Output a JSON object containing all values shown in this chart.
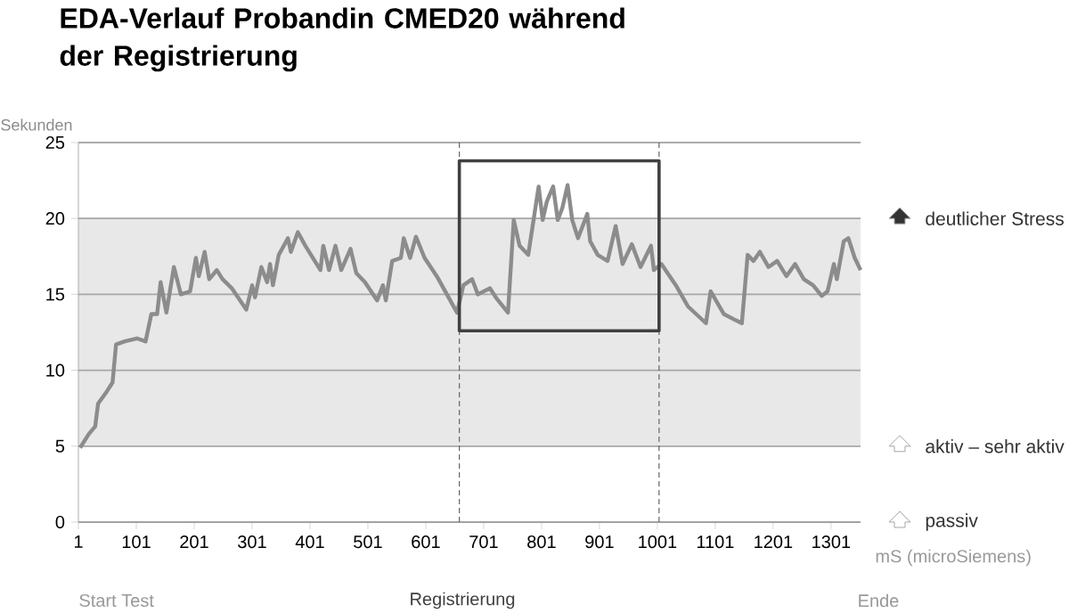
{
  "chart_data": {
    "type": "line",
    "title": "EDA-Verlauf Probandin CMED20 während der Registrierung",
    "xlabel": "mS (microSiemens)",
    "ylabel": "Sekunden",
    "xlim": [
      1,
      1352
    ],
    "ylim": [
      0,
      25
    ],
    "xticks": [
      1,
      101,
      201,
      301,
      401,
      501,
      601,
      701,
      801,
      901,
      1001,
      1101,
      1201,
      1301
    ],
    "yticks": [
      0,
      5,
      10,
      15,
      20,
      25
    ],
    "grid": "y",
    "series": [
      {
        "color": "#8c8c8c",
        "x": [
          4,
          19,
          30,
          35,
          50,
          60,
          66,
          81,
          102,
          117,
          127,
          137,
          143,
          153,
          166,
          178,
          194,
          204,
          209,
          219,
          227,
          240,
          250,
          266,
          291,
          301,
          306,
          317,
          327,
          332,
          337,
          347,
          363,
          368,
          380,
          393,
          419,
          424,
          434,
          445,
          455,
          471,
          481,
          496,
          517,
          527,
          532,
          543,
          558,
          563,
          574,
          584,
          599,
          620,
          655,
          666,
          681,
          691,
          712,
          722,
          743,
          753,
          763,
          778,
          788,
          796,
          803,
          810,
          821,
          829,
          837,
          846,
          854,
          864,
          880,
          885,
          898,
          915,
          929,
          941,
          957,
          972,
          990,
          995,
          1008,
          1033,
          1054,
          1085,
          1093,
          1116,
          1136,
          1147,
          1157,
          1167,
          1178,
          1193,
          1208,
          1224,
          1239,
          1254,
          1270,
          1285,
          1295,
          1306,
          1311,
          1323,
          1331,
          1342,
          1352
        ],
        "values": [
          4.9,
          5.8,
          6.3,
          7.8,
          8.6,
          9.2,
          11.7,
          11.9,
          12.1,
          11.9,
          13.7,
          13.7,
          15.8,
          13.8,
          16.8,
          15.0,
          15.2,
          17.4,
          16.2,
          17.8,
          16.0,
          16.6,
          16.0,
          15.4,
          14.0,
          15.6,
          14.8,
          16.8,
          15.8,
          17.0,
          15.6,
          17.6,
          18.7,
          17.8,
          19.1,
          18.2,
          16.6,
          18.2,
          16.6,
          18.2,
          16.6,
          18.0,
          16.4,
          15.8,
          14.6,
          15.6,
          14.6,
          17.2,
          17.4,
          18.7,
          17.4,
          18.8,
          17.4,
          16.2,
          13.8,
          15.6,
          16.0,
          15.0,
          15.4,
          14.8,
          13.8,
          19.9,
          18.2,
          17.6,
          20.1,
          22.1,
          19.9,
          21.1,
          22.1,
          19.9,
          20.7,
          22.2,
          19.9,
          18.7,
          20.3,
          18.5,
          17.6,
          17.2,
          19.5,
          17.0,
          18.3,
          16.8,
          18.2,
          16.6,
          17.0,
          15.6,
          14.2,
          13.1,
          15.2,
          13.7,
          13.3,
          13.1,
          17.6,
          17.2,
          17.8,
          16.8,
          17.2,
          16.2,
          17.0,
          16.0,
          15.6,
          14.9,
          15.2,
          17.0,
          16.0,
          18.5,
          18.7,
          17.4,
          16.6
        ]
      }
    ],
    "bands": [
      {
        "axis": "y",
        "from": 5,
        "to": 20,
        "color": "#e8e8e8"
      }
    ],
    "ref_lines": [
      {
        "axis": "x",
        "value": 659,
        "color": "#666666",
        "line_style": "dashed"
      },
      {
        "axis": "x",
        "value": 1004,
        "color": "#666666",
        "line_style": "dashed"
      }
    ],
    "annotations": [
      "deutlicher Stress",
      "aktiv – sehr aktiv",
      "passiv",
      "Start Test",
      "Registrierung",
      "Ende"
    ]
  }
}
